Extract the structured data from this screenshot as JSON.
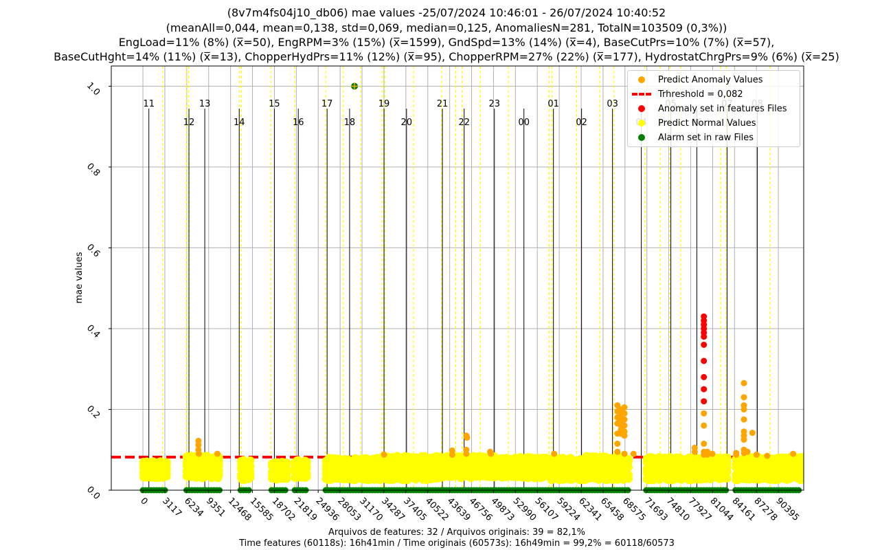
{
  "title_lines": [
    "(8v7m4fs04j10_db06) mae values -25/07/2024 10:46:01 - 26/07/2024 10:40:52",
    "(meanAll=0,044, mean=0,138, std=0,069, median=0,125, AnomaliesN=281, TotalN=103509 (0,3%))",
    "EngLoad=11% (8%) (x̅=50), EngRPM=3% (15%) (x̅=1599), GndSpd=13% (14%) (x̅=4), BaseCutPrs=10% (7%) (x̅=57),",
    "BaseCutHght=14% (11%) (x̅=13), ChopperHydPrs=11% (12%) (x̅=95), ChopperRPM=27% (22%) (x̅=177), HydrostatChrgPrs=9% (6%) (x̅=25)"
  ],
  "footer_lines": [
    "Arquivos de features: 32 / Arquivos originais: 39 = 82,1%",
    "Time features (60118s): 16h41min / Time originais (60573s): 16h49min = 99,2% = 60118/60573"
  ],
  "colors": {
    "anomaly_pred": "#ffa500",
    "threshold": "#ff0000",
    "anomaly_file": "#ff0000",
    "normal": "#ffff00",
    "alarm": "#008000",
    "grid": "#b0b0b0",
    "hour_line": "#000000",
    "file_line": "#ffff00"
  },
  "legend": {
    "items": [
      {
        "label": "Predict Anomaly Values",
        "color": "#ffa500",
        "kind": "dot"
      },
      {
        "label": "Trhreshold = 0,082",
        "color": "#ff0000",
        "kind": "dash"
      },
      {
        "label": "Anomaly set in features Files",
        "color": "#ff0000",
        "kind": "dot"
      },
      {
        "label": "Predict Normal Values",
        "color": "#ffff00",
        "kind": "dot"
      },
      {
        "label": "Alarm set in raw Files",
        "color": "#008000",
        "kind": "dot"
      }
    ]
  },
  "chart_data": {
    "type": "scatter",
    "ylabel": "mae values",
    "xlabel": "",
    "xlim": [
      -4500,
      94000
    ],
    "ylim": [
      0.0,
      1.05
    ],
    "grid": true,
    "legend_position": "top-right",
    "y_ticks": [
      "0.0",
      "0.2",
      "0.4",
      "0.6",
      "0.8",
      "1.0"
    ],
    "y_tick_values": [
      0.0,
      0.2,
      0.4,
      0.6,
      0.8,
      1.0
    ],
    "x_ticks": [
      "0",
      "3117",
      "6234",
      "9351",
      "12468",
      "15585",
      "18702",
      "21819",
      "24936",
      "28053",
      "31170",
      "34287",
      "37405",
      "40522",
      "43639",
      "46756",
      "49873",
      "52990",
      "56107",
      "59224",
      "62341",
      "65458",
      "68575",
      "71693",
      "74810",
      "77927",
      "81044",
      "84161",
      "87278",
      "90395"
    ],
    "x_tick_values": [
      0,
      3117,
      6234,
      9351,
      12468,
      15585,
      18702,
      21819,
      24936,
      28053,
      31170,
      34287,
      37405,
      40522,
      43639,
      46756,
      49873,
      52990,
      56107,
      59224,
      62341,
      65458,
      68575,
      71693,
      74810,
      77927,
      81044,
      84161,
      87278,
      90395
    ],
    "threshold": 0.082,
    "hour_markers": [
      {
        "label": "11",
        "x": 846,
        "row": 0
      },
      {
        "label": "12",
        "x": 6550,
        "row": 1
      },
      {
        "label": "13",
        "x": 8800,
        "row": 0
      },
      {
        "label": "14",
        "x": 13700,
        "row": 1
      },
      {
        "label": "15",
        "x": 18700,
        "row": 0
      },
      {
        "label": "16",
        "x": 22100,
        "row": 1
      },
      {
        "label": "17",
        "x": 26200,
        "row": 0
      },
      {
        "label": "18",
        "x": 29400,
        "row": 1
      },
      {
        "label": "19",
        "x": 34300,
        "row": 0
      },
      {
        "label": "20",
        "x": 37500,
        "row": 1
      },
      {
        "label": "21",
        "x": 42600,
        "row": 0
      },
      {
        "label": "22",
        "x": 45700,
        "row": 1
      },
      {
        "label": "23",
        "x": 50000,
        "row": 0
      },
      {
        "label": "00",
        "x": 54200,
        "row": 1
      },
      {
        "label": "01",
        "x": 58400,
        "row": 0
      },
      {
        "label": "02",
        "x": 62400,
        "row": 1
      },
      {
        "label": "03",
        "x": 66800,
        "row": 0
      },
      {
        "label": "04",
        "x": 70900,
        "row": 1
      },
      {
        "label": "05",
        "x": 75100,
        "row": 0
      },
      {
        "label": "06",
        "x": 78800,
        "row": 1
      },
      {
        "label": "07",
        "x": 83100,
        "row": 0
      },
      {
        "label": "08",
        "x": 87400,
        "row": 0
      }
    ],
    "file_boundaries": [
      2800,
      6200,
      6500,
      13700,
      14000,
      18200,
      21600,
      26000,
      28500,
      31000,
      34000,
      34400,
      38500,
      42500,
      44500,
      45400,
      48000,
      52000,
      57800,
      58200,
      61700,
      65000,
      67000,
      71400,
      73600,
      75000,
      76500,
      82200,
      83000,
      89200
    ],
    "segments": [
      {
        "x0": 0,
        "x1": 3500,
        "ymin": 0.03,
        "ymax": 0.072
      },
      {
        "x0": 6200,
        "x1": 11000,
        "ymin": 0.03,
        "ymax": 0.085
      },
      {
        "x0": 13900,
        "x1": 15400,
        "ymin": 0.025,
        "ymax": 0.075
      },
      {
        "x0": 18300,
        "x1": 20600,
        "ymin": 0.025,
        "ymax": 0.07
      },
      {
        "x0": 21600,
        "x1": 23500,
        "ymin": 0.03,
        "ymax": 0.075
      },
      {
        "x0": 26000,
        "x1": 34000,
        "ymin": 0.025,
        "ymax": 0.08
      },
      {
        "x0": 34100,
        "x1": 42200,
        "ymin": 0.025,
        "ymax": 0.085
      },
      {
        "x0": 42300,
        "x1": 51000,
        "ymin": 0.03,
        "ymax": 0.085
      },
      {
        "x0": 51000,
        "x1": 58000,
        "ymin": 0.03,
        "ymax": 0.082
      },
      {
        "x0": 58100,
        "x1": 63000,
        "ymin": 0.025,
        "ymax": 0.08
      },
      {
        "x0": 63000,
        "x1": 69200,
        "ymin": 0.025,
        "ymax": 0.085
      },
      {
        "x0": 71600,
        "x1": 79800,
        "ymin": 0.025,
        "ymax": 0.082
      },
      {
        "x0": 80000,
        "x1": 83300,
        "ymin": 0.025,
        "ymax": 0.082
      },
      {
        "x0": 84300,
        "x1": 94000,
        "ymin": 0.025,
        "ymax": 0.082
      },
      {
        "x0": 94000,
        "x1": 100000,
        "ymin": 0.03,
        "ymax": 0.085
      }
    ],
    "alarm_bands": [
      [
        0,
        3500
      ],
      [
        6200,
        11000
      ],
      [
        13900,
        15400
      ],
      [
        18300,
        20600
      ],
      [
        21600,
        23500
      ],
      [
        26000,
        69200
      ],
      [
        71600,
        83300
      ],
      [
        84300,
        100000
      ]
    ],
    "alarm_outlier": {
      "x": 30100,
      "y": 1.0
    },
    "anomaly_points": [
      {
        "x": 7900,
        "y": 0.122
      },
      {
        "x": 7900,
        "y": 0.112
      },
      {
        "x": 7900,
        "y": 0.1
      },
      {
        "x": 7950,
        "y": 0.09
      },
      {
        "x": 10600,
        "y": 0.09
      },
      {
        "x": 34300,
        "y": 0.088
      },
      {
        "x": 44000,
        "y": 0.098
      },
      {
        "x": 44000,
        "y": 0.088
      },
      {
        "x": 46000,
        "y": 0.135
      },
      {
        "x": 46100,
        "y": 0.13
      },
      {
        "x": 46000,
        "y": 0.1
      },
      {
        "x": 46000,
        "y": 0.09
      },
      {
        "x": 49400,
        "y": 0.095
      },
      {
        "x": 49500,
        "y": 0.09
      },
      {
        "x": 58500,
        "y": 0.09
      },
      {
        "x": 67500,
        "y": 0.21
      },
      {
        "x": 67500,
        "y": 0.195
      },
      {
        "x": 67500,
        "y": 0.18
      },
      {
        "x": 67500,
        "y": 0.165
      },
      {
        "x": 67500,
        "y": 0.14
      },
      {
        "x": 67500,
        "y": 0.115
      },
      {
        "x": 67500,
        "y": 0.095
      },
      {
        "x": 68000,
        "y": 0.2
      },
      {
        "x": 68000,
        "y": 0.19
      },
      {
        "x": 68000,
        "y": 0.18
      },
      {
        "x": 68000,
        "y": 0.17
      },
      {
        "x": 68000,
        "y": 0.16
      },
      {
        "x": 68000,
        "y": 0.15
      },
      {
        "x": 68000,
        "y": 0.14
      },
      {
        "x": 68500,
        "y": 0.205
      },
      {
        "x": 68500,
        "y": 0.19
      },
      {
        "x": 68500,
        "y": 0.175
      },
      {
        "x": 68500,
        "y": 0.16
      },
      {
        "x": 68500,
        "y": 0.145
      },
      {
        "x": 68500,
        "y": 0.135
      },
      {
        "x": 68500,
        "y": 0.09
      },
      {
        "x": 69800,
        "y": 0.09
      },
      {
        "x": 78500,
        "y": 0.105
      },
      {
        "x": 78500,
        "y": 0.095
      },
      {
        "x": 80300,
        "y": 0.095
      },
      {
        "x": 80300,
        "y": 0.088
      },
      {
        "x": 81000,
        "y": 0.09
      },
      {
        "x": 84400,
        "y": 0.092
      },
      {
        "x": 84400,
        "y": 0.088
      },
      {
        "x": 85500,
        "y": 0.265
      },
      {
        "x": 85500,
        "y": 0.23
      },
      {
        "x": 85500,
        "y": 0.21
      },
      {
        "x": 85500,
        "y": 0.2
      },
      {
        "x": 85500,
        "y": 0.175
      },
      {
        "x": 85500,
        "y": 0.145
      },
      {
        "x": 85500,
        "y": 0.135
      },
      {
        "x": 85500,
        "y": 0.125
      },
      {
        "x": 85500,
        "y": 0.1
      },
      {
        "x": 85500,
        "y": 0.092
      },
      {
        "x": 86000,
        "y": 0.095
      },
      {
        "x": 86700,
        "y": 0.142
      },
      {
        "x": 87300,
        "y": 0.088
      },
      {
        "x": 88800,
        "y": 0.085
      },
      {
        "x": 92500,
        "y": 0.09
      }
    ],
    "anomaly_file_points": [
      {
        "x": 79800,
        "y": 0.43
      },
      {
        "x": 79800,
        "y": 0.42
      },
      {
        "x": 79800,
        "y": 0.41
      },
      {
        "x": 79800,
        "y": 0.4
      },
      {
        "x": 79800,
        "y": 0.39
      },
      {
        "x": 79800,
        "y": 0.38
      },
      {
        "x": 79800,
        "y": 0.36
      },
      {
        "x": 79800,
        "y": 0.32
      },
      {
        "x": 79800,
        "y": 0.28
      },
      {
        "x": 79800,
        "y": 0.25
      },
      {
        "x": 79800,
        "y": 0.22
      }
    ],
    "anomaly_file_orange_points": [
      {
        "x": 79800,
        "y": 0.19
      },
      {
        "x": 79800,
        "y": 0.16
      },
      {
        "x": 79800,
        "y": 0.115
      },
      {
        "x": 79800,
        "y": 0.095
      },
      {
        "x": 79800,
        "y": 0.088
      }
    ]
  }
}
